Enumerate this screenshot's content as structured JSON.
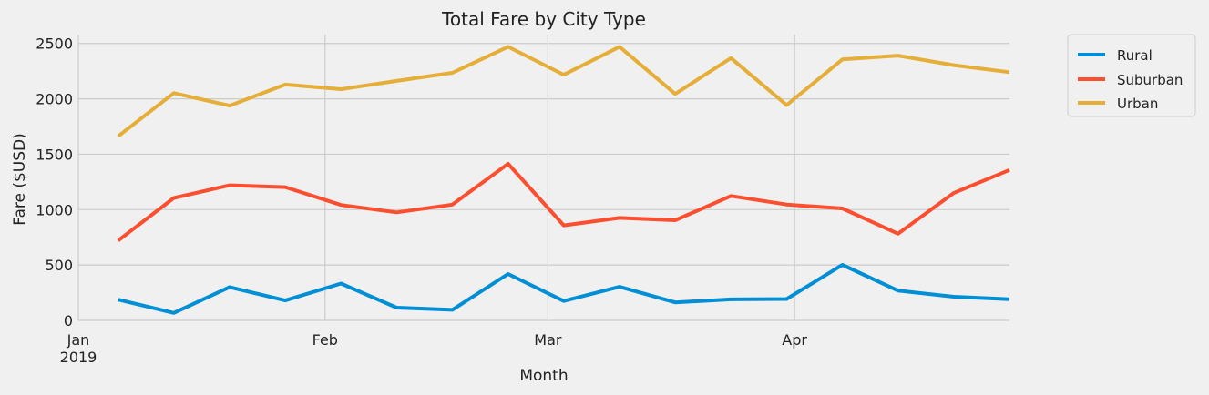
{
  "chart_data": {
    "type": "line",
    "title": "Total Fare by City Type",
    "xlabel": "Month",
    "ylabel": "Fare ($USD)",
    "ylim": [
      0,
      2580
    ],
    "yticks": [
      0,
      500,
      1000,
      1500,
      2000,
      2500
    ],
    "x": [
      "2019-01-06",
      "2019-01-13",
      "2019-01-20",
      "2019-01-27",
      "2019-02-03",
      "2019-02-10",
      "2019-02-17",
      "2019-02-24",
      "2019-03-03",
      "2019-03-10",
      "2019-03-17",
      "2019-03-24",
      "2019-03-31",
      "2019-04-07",
      "2019-04-14",
      "2019-04-21",
      "2019-04-28"
    ],
    "x_first_tick_year": "2019",
    "xticks": [
      {
        "label": "Jan",
        "date": "2019-01-01"
      },
      {
        "label": "Feb",
        "date": "2019-02-01"
      },
      {
        "label": "Mar",
        "date": "2019-03-01"
      },
      {
        "label": "Apr",
        "date": "2019-04-01"
      }
    ],
    "grid": true,
    "legend_position": "top-right (outside plot)",
    "series": [
      {
        "name": "Rural",
        "color": "#008fd5",
        "values": [
          187,
          67,
          301,
          180,
          333,
          115,
          95,
          419,
          175,
          303,
          163,
          190,
          193,
          501,
          269,
          214,
          191
        ]
      },
      {
        "name": "Suburban",
        "color": "#fc4f30",
        "values": [
          721,
          1105,
          1219,
          1203,
          1042,
          975,
          1045,
          1413,
          858,
          925,
          904,
          1123,
          1046,
          1011,
          782,
          1150,
          1357
        ]
      },
      {
        "name": "Urban",
        "color": "#e5ae38",
        "values": [
          1662,
          2052,
          1938,
          2129,
          2087,
          2162,
          2235,
          2470,
          2218,
          2470,
          2044,
          2368,
          1943,
          2356,
          2390,
          2304,
          2241
        ]
      }
    ]
  }
}
